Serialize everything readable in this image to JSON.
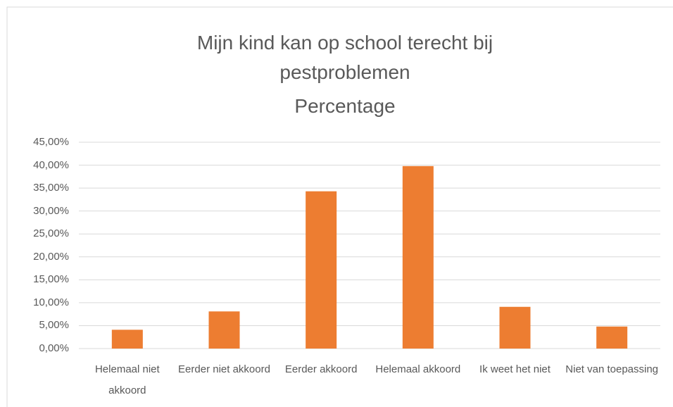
{
  "chart_data": {
    "type": "bar",
    "title": "Mijn kind kan op school terecht bij pestproblemen",
    "subtitle": "Percentage",
    "categories": [
      "Helemaal niet akkoord",
      "Eerder niet akkoord",
      "Eerder akkoord",
      "Helemaal akkoord",
      "Ik weet het niet",
      "Niet van toepassing"
    ],
    "values": [
      4.1,
      8.1,
      34.3,
      39.8,
      9.1,
      4.8
    ],
    "color": "#ed7d31",
    "ylim": [
      0,
      45
    ],
    "yticks": [
      {
        "value": 0,
        "label": "0,00%"
      },
      {
        "value": 5,
        "label": "5,00%"
      },
      {
        "value": 10,
        "label": "10,00%"
      },
      {
        "value": 15,
        "label": "15,00%"
      },
      {
        "value": 20,
        "label": "20,00%"
      },
      {
        "value": 25,
        "label": "25,00%"
      },
      {
        "value": 30,
        "label": "30,00%"
      },
      {
        "value": 35,
        "label": "35,00%"
      },
      {
        "value": 40,
        "label": "40,00%"
      },
      {
        "value": 45,
        "label": "45,00%"
      }
    ],
    "grid": true
  }
}
